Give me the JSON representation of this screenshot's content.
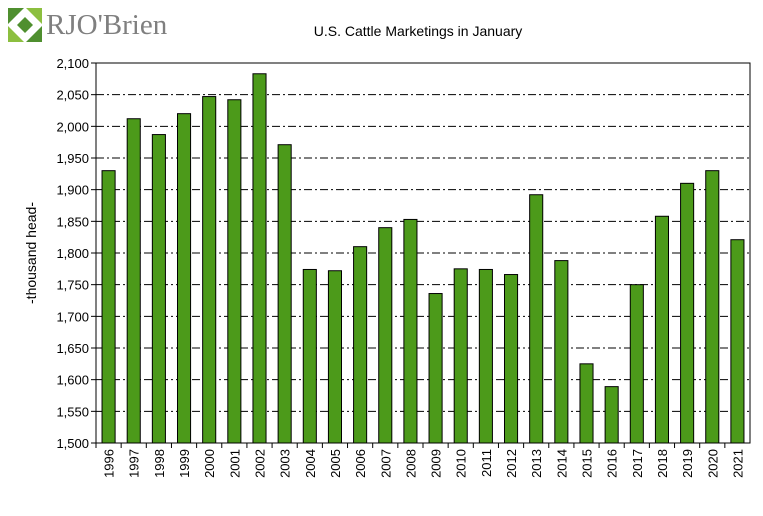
{
  "logo": {
    "text": "RJO'Brien",
    "color": "#4f8f2f"
  },
  "chart_data": {
    "type": "bar",
    "title": "U.S. Cattle Marketings in January",
    "xlabel": "",
    "ylabel": "-thousand head-",
    "ylim": [
      1500,
      2100
    ],
    "ytick_step": 50,
    "grid": true,
    "bar_color": "#4c9a1a",
    "categories": [
      "1996",
      "1997",
      "1998",
      "1999",
      "2000",
      "2001",
      "2002",
      "2003",
      "2004",
      "2005",
      "2006",
      "2007",
      "2008",
      "2009",
      "2010",
      "2011",
      "2012",
      "2013",
      "2014",
      "2015",
      "2016",
      "2017",
      "2018",
      "2019",
      "2020",
      "2021"
    ],
    "values": [
      1930,
      2012,
      1987,
      2020,
      2047,
      2042,
      2083,
      1971,
      1774,
      1772,
      1810,
      1840,
      1853,
      1736,
      1775,
      1774,
      1766,
      1892,
      1788,
      1625,
      1589,
      1750,
      1858,
      1910,
      1930,
      1821
    ]
  }
}
